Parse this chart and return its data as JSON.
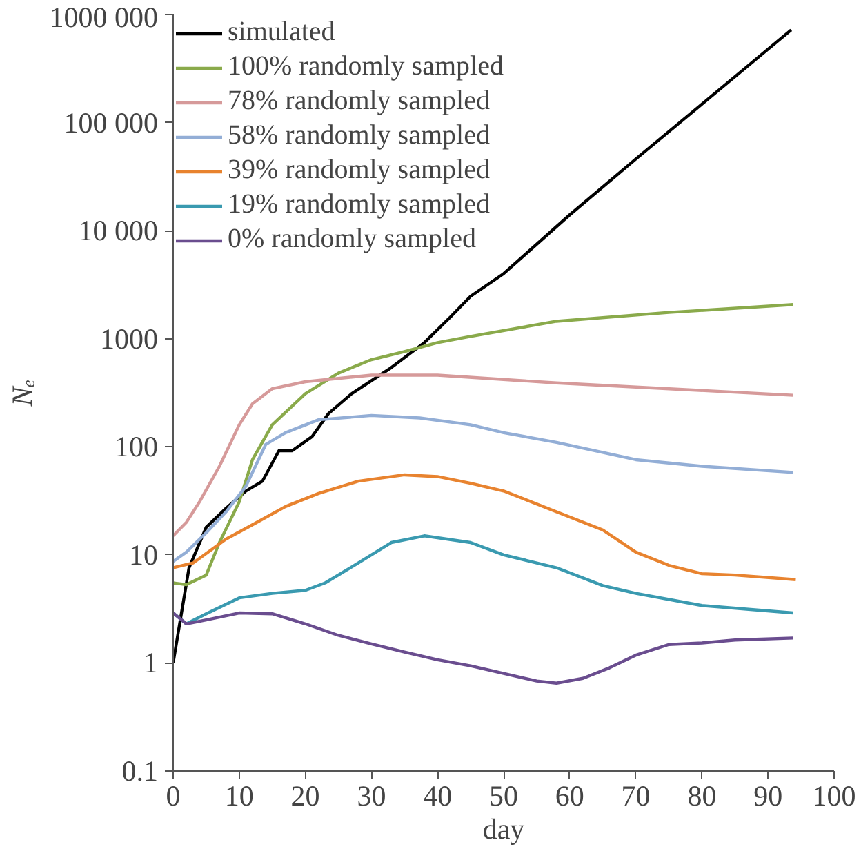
{
  "chart_data": {
    "type": "line",
    "xlabel": "day",
    "ylabel": "Nₑ",
    "log": "y",
    "grid": false,
    "legend": "top left",
    "line_style": "solid",
    "marker": "none",
    "xlim": [
      0,
      100
    ],
    "xticks": [
      0,
      10,
      20,
      30,
      40,
      50,
      60,
      70,
      80,
      90,
      100
    ],
    "ylim": [
      0.1,
      1000000
    ],
    "yticks": [
      {
        "value": 0.1,
        "label": "0.1"
      },
      {
        "value": 1,
        "label": "1"
      },
      {
        "value": 10,
        "label": "10"
      },
      {
        "value": 100,
        "label": "100"
      },
      {
        "value": 1000,
        "label": "1000"
      },
      {
        "value": 10000,
        "label": "10 000"
      },
      {
        "value": 100000,
        "label": "100 000"
      },
      {
        "value": 1000000,
        "label": "1000 000"
      }
    ],
    "series": [
      {
        "name": "simulated",
        "color": "#000000",
        "x": [
          0,
          2.4,
          5,
          8,
          11,
          13.5,
          16,
          18,
          21,
          23.5,
          27,
          33,
          38,
          42,
          45,
          50,
          60,
          70,
          80,
          93.5
        ],
        "values": [
          1,
          7.6,
          18,
          27,
          39,
          48,
          92,
          92,
          124,
          203,
          310,
          540,
          920,
          1600,
          2470,
          4000,
          14000,
          46000,
          148000,
          720000
        ]
      },
      {
        "name": "100% randomly sampled",
        "color": "#8aaa4b",
        "x": [
          0,
          2,
          5,
          7,
          10,
          12,
          15,
          20,
          25,
          30,
          35,
          40,
          45,
          58,
          75,
          93.8
        ],
        "values": [
          5.5,
          5.3,
          6.5,
          13,
          31,
          76,
          160,
          310,
          480,
          640,
          760,
          920,
          1050,
          1450,
          1750,
          2070
        ]
      },
      {
        "name": "78% randomly sampled",
        "color": "#d69a9a",
        "x": [
          0,
          2,
          4,
          7,
          10,
          12,
          15,
          20,
          30,
          40,
          58,
          93.8
        ],
        "values": [
          15,
          20,
          31,
          66,
          160,
          250,
          345,
          400,
          460,
          460,
          390,
          300
        ]
      },
      {
        "name": "58% randomly sampled",
        "color": "#93aed6",
        "x": [
          0,
          2,
          5,
          8,
          11,
          14,
          17,
          22,
          30,
          37.3,
          45,
          50,
          58,
          70,
          80,
          93.8
        ],
        "values": [
          8.7,
          10.6,
          16,
          25,
          43,
          105,
          135,
          178,
          195,
          185,
          160,
          135,
          110,
          76,
          66,
          58
        ]
      },
      {
        "name": "39% randomly sampled",
        "color": "#e8832f",
        "x": [
          0,
          3,
          8,
          12,
          17,
          22,
          28,
          35,
          40,
          45,
          50,
          58,
          65,
          70,
          75,
          80,
          85,
          94.2
        ],
        "values": [
          7.6,
          8.4,
          14,
          19,
          28,
          37,
          48,
          55,
          53,
          46,
          39,
          25,
          17,
          10.6,
          8,
          6.7,
          6.5,
          5.9
        ]
      },
      {
        "name": "19% randomly sampled",
        "color": "#3a9ab0",
        "x": [
          0,
          2,
          5,
          10,
          15,
          20,
          23,
          28,
          33,
          38,
          45,
          50,
          58,
          65,
          70,
          80,
          93.8
        ],
        "values": [
          2.9,
          2.3,
          2.85,
          4,
          4.4,
          4.7,
          5.5,
          8.4,
          13,
          15,
          13,
          10,
          7.6,
          5.2,
          4.4,
          3.4,
          2.9
        ]
      },
      {
        "name": "0% randomly sampled",
        "color": "#6a4d8f",
        "x": [
          0,
          2,
          5,
          10,
          15,
          20,
          25,
          30,
          35,
          40,
          45,
          50,
          55,
          58,
          62,
          66,
          70,
          75,
          80,
          85,
          93.8
        ],
        "values": [
          2.9,
          2.3,
          2.5,
          2.9,
          2.85,
          2.3,
          1.8,
          1.5,
          1.26,
          1.07,
          0.94,
          0.8,
          0.68,
          0.65,
          0.72,
          0.9,
          1.18,
          1.48,
          1.53,
          1.63,
          1.7
        ]
      }
    ]
  }
}
